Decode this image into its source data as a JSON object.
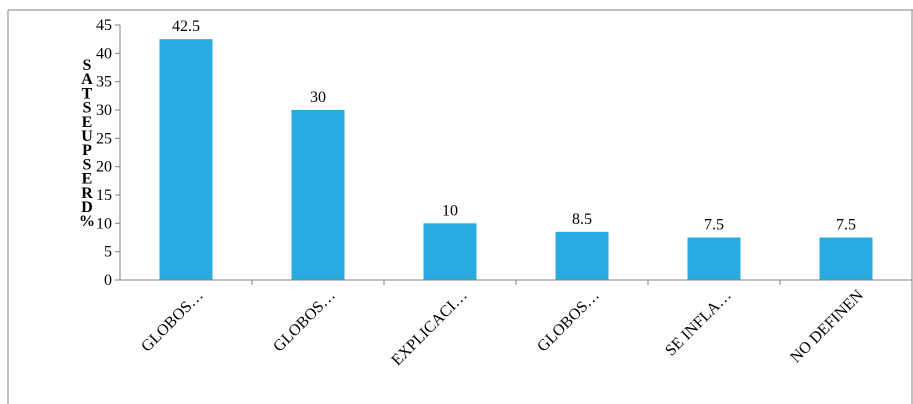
{
  "chart_data": {
    "type": "bar",
    "title": "",
    "xlabel": "",
    "ylabel": "RESPUESTAS %",
    "ylabel_chars": [
      "S",
      "A",
      "T",
      "S",
      "E",
      "U",
      "P",
      "S",
      "E",
      "R",
      "D",
      "%"
    ],
    "categories": [
      "GLOBOS…",
      "GLOBOS…",
      "EXPLICACI…",
      "GLOBOS…",
      "SE INFLA…",
      "NO DEFINEN"
    ],
    "values": [
      42.5,
      30,
      10,
      8.5,
      7.5,
      7.5
    ],
    "value_labels": [
      "42.5",
      "30",
      "10",
      "8.5",
      "7.5",
      "7.5"
    ],
    "ylim": [
      0,
      45
    ],
    "yticks": [
      0,
      5,
      10,
      15,
      20,
      25,
      30,
      35,
      40,
      45
    ],
    "ytick_labels": [
      "0",
      "5",
      "10",
      "15",
      "20",
      "25",
      "30",
      "35",
      "40",
      "45"
    ],
    "grid": false,
    "legend": "none",
    "bar_color": "#29ABE2"
  }
}
